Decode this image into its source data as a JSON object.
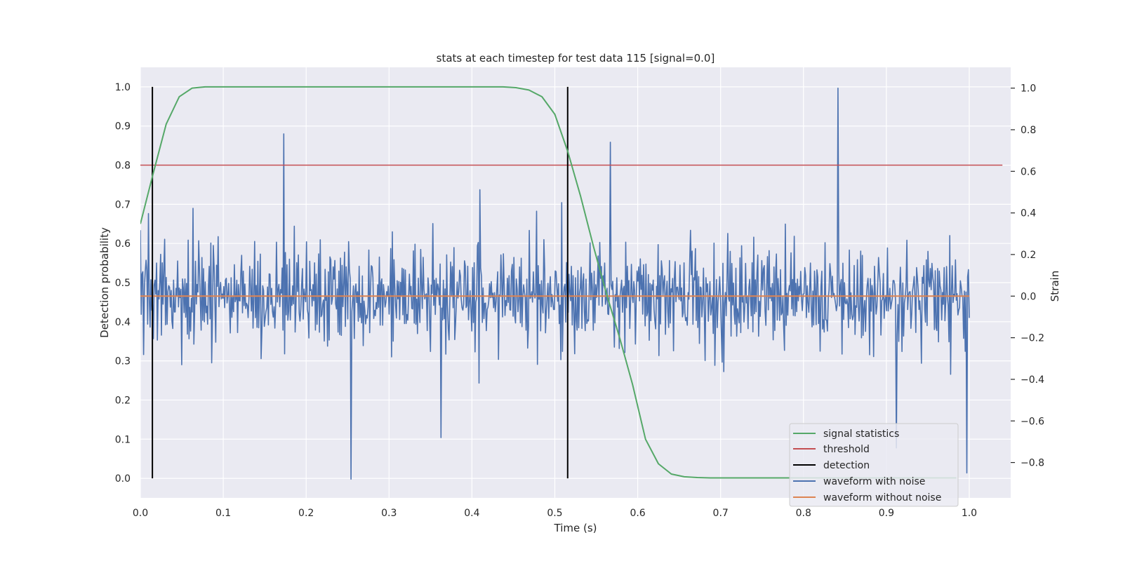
{
  "chart_data": {
    "type": "line",
    "title": "stats at each timestep for test data 115 [signal=0.0]",
    "xlabel": "Time (s)",
    "ylabel": "Detection probability",
    "ylabel_right": "Strain",
    "xlim": [
      0.0,
      1.05
    ],
    "ylim": [
      -0.05,
      1.05
    ],
    "ylim_right": [
      -0.97,
      1.1
    ],
    "x_ticks": [
      "0.0",
      "0.1",
      "0.2",
      "0.3",
      "0.4",
      "0.5",
      "0.6",
      "0.7",
      "0.8",
      "0.9",
      "1.0"
    ],
    "y_ticks": [
      "0.0",
      "0.1",
      "0.2",
      "0.3",
      "0.4",
      "0.5",
      "0.6",
      "0.7",
      "0.8",
      "0.9",
      "1.0"
    ],
    "y_right_ticks": [
      "−0.8",
      "−0.6",
      "−0.4",
      "−0.2",
      "0.0",
      "0.2",
      "0.4",
      "0.6",
      "0.8",
      "1.0"
    ],
    "grid": true,
    "legend_position": "lower-right",
    "legend": [
      "signal statistics",
      "threshold",
      "detection",
      "waveform with noise",
      "waveform without noise"
    ],
    "colors": {
      "background": "#eaeaf2",
      "grid": "#ffffff",
      "signal_statistics": "#55a868",
      "threshold": "#c44e52",
      "detection": "#000000",
      "waveform_with_noise": "#4c72b0",
      "waveform_without_noise": "#dd8452"
    },
    "series": [
      {
        "name": "signal statistics",
        "axis": "left",
        "x": [
          0.0,
          0.0156,
          0.0312,
          0.0469,
          0.0625,
          0.0781,
          0.0938,
          0.1094,
          0.125,
          0.1406,
          0.1562,
          0.1719,
          0.1875,
          0.2031,
          0.2188,
          0.2344,
          0.25,
          0.2656,
          0.2812,
          0.2969,
          0.3125,
          0.3281,
          0.3438,
          0.3594,
          0.375,
          0.3906,
          0.4062,
          0.4219,
          0.4375,
          0.4531,
          0.4688,
          0.4844,
          0.5,
          0.5156,
          0.5312,
          0.5469,
          0.5625,
          0.5781,
          0.5938,
          0.6094,
          0.625,
          0.6406,
          0.6562,
          0.6719,
          0.6875,
          0.7031,
          0.7188,
          0.7344,
          0.75,
          0.7656,
          0.7812,
          0.7969,
          0.8125,
          0.8281,
          0.8438,
          0.8594,
          0.875,
          0.8906,
          0.9062,
          0.9219,
          0.9375,
          0.9531,
          0.9688,
          0.9844
        ],
        "values": [
          0.65,
          0.78,
          0.905,
          0.975,
          0.997,
          1.0,
          1.0,
          1.0,
          1.0,
          1.0,
          1.0,
          1.0,
          1.0,
          1.0,
          1.0,
          1.0,
          1.0,
          1.0,
          1.0,
          1.0,
          1.0,
          1.0,
          1.0,
          1.0,
          1.0,
          1.0,
          1.0,
          1.0,
          1.0,
          0.998,
          0.992,
          0.975,
          0.93,
          0.835,
          0.72,
          0.59,
          0.47,
          0.36,
          0.24,
          0.1,
          0.037,
          0.011,
          0.004,
          0.002,
          0.001,
          0.001,
          0.001,
          0.001,
          0.001,
          0.001,
          0.001,
          0.001,
          0.001,
          0.001,
          0.001,
          0.001,
          0.001,
          0.001,
          0.001,
          0.001,
          0.001,
          0.001,
          0.001,
          0.001
        ]
      },
      {
        "name": "threshold",
        "axis": "left",
        "x": [
          0.0,
          1.04
        ],
        "values": [
          0.8,
          0.8
        ]
      },
      {
        "name": "detection",
        "axis": "left",
        "x": [
          0.0145,
          0.5155
        ],
        "values": [
          1.0,
          1.0
        ]
      },
      {
        "name": "waveform with noise",
        "axis": "right",
        "x_range": [
          0.0,
          1.0
        ],
        "sample_count": 1024,
        "extremes": [
          {
            "x": 0.173,
            "value": 0.78
          },
          {
            "x": 0.254,
            "value": -0.88
          },
          {
            "x": 0.363,
            "value": -0.68
          },
          {
            "x": 0.567,
            "value": 0.74
          },
          {
            "x": 0.842,
            "value": 1.0
          },
          {
            "x": 0.912,
            "value": -0.73
          },
          {
            "x": 0.997,
            "value": -0.85
          }
        ]
      },
      {
        "name": "waveform without noise",
        "axis": "right",
        "x": [
          0.0,
          1.0
        ],
        "values": [
          0.0,
          0.0
        ]
      }
    ]
  }
}
